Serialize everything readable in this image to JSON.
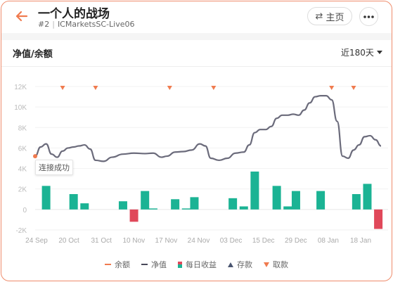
{
  "header": {
    "title": "一个人的战场",
    "rank": "#2",
    "server": "ICMarketsSC-Live06",
    "home_label": "主页"
  },
  "section": {
    "title": "净值/余额",
    "range_label": "近180天"
  },
  "tooltip": {
    "text": "连接成功"
  },
  "legend": {
    "items": [
      "余额",
      "净值",
      "每日收益",
      "存款",
      "取款"
    ]
  },
  "colors": {
    "accent": "#f07b4f",
    "balance": "#f07b4f",
    "equity": "#6b6b7b",
    "profit_pos": "#1bb394",
    "profit_neg": "#e0485a",
    "deposit": "#4a5570",
    "withdraw": "#f07b4f"
  },
  "chart_data": {
    "type": "line",
    "y_ticks": [
      "12K",
      "10K",
      "8K",
      "6K",
      "4K",
      "2K",
      "0",
      "-2K"
    ],
    "ylim": [
      -2000,
      12000
    ],
    "x_ticks": [
      "24 Sep",
      "20 Oct",
      "31 Oct",
      "10 Nov",
      "17 Nov",
      "24 Nov",
      "03 Dec",
      "15 Dec",
      "29 Dec",
      "08 Jan",
      "18 Jan"
    ],
    "equity_series": {
      "name": "净值",
      "points": [
        [
          0,
          5200
        ],
        [
          2,
          6100
        ],
        [
          4,
          6400
        ],
        [
          6,
          5400
        ],
        [
          8,
          5100
        ],
        [
          10,
          5700
        ],
        [
          12,
          6000
        ],
        [
          14,
          6100
        ],
        [
          16,
          6200
        ],
        [
          18,
          6300
        ],
        [
          20,
          5900
        ],
        [
          22,
          4800
        ],
        [
          25,
          4700
        ],
        [
          28,
          5100
        ],
        [
          32,
          5400
        ],
        [
          36,
          5500
        ],
        [
          40,
          5450
        ],
        [
          43,
          5500
        ],
        [
          46,
          5100
        ],
        [
          48,
          5200
        ],
        [
          51,
          5600
        ],
        [
          54,
          5650
        ],
        [
          57,
          5800
        ],
        [
          60,
          6400
        ],
        [
          62,
          6200
        ],
        [
          64,
          5000
        ],
        [
          67,
          4800
        ],
        [
          70,
          5000
        ],
        [
          73,
          5500
        ],
        [
          76,
          5600
        ],
        [
          78,
          6300
        ],
        [
          80,
          7500
        ],
        [
          82,
          7800
        ],
        [
          84,
          7800
        ],
        [
          86,
          8100
        ],
        [
          88,
          8900
        ],
        [
          90,
          9200
        ],
        [
          92,
          9200
        ],
        [
          94,
          9300
        ],
        [
          96,
          9200
        ],
        [
          98,
          9700
        ],
        [
          100,
          10400
        ],
        [
          102,
          11000
        ],
        [
          104,
          11100
        ],
        [
          106,
          11100
        ],
        [
          108,
          10700
        ],
        [
          110,
          8600
        ],
        [
          112,
          5200
        ],
        [
          114,
          5000
        ],
        [
          116,
          5800
        ],
        [
          118,
          6300
        ],
        [
          120,
          7100
        ],
        [
          122,
          7200
        ],
        [
          124,
          6800
        ],
        [
          126,
          6200
        ]
      ]
    },
    "balance_series": {
      "name": "余额",
      "points": [
        [
          0,
          5200
        ]
      ]
    },
    "daily_profit": {
      "name": "每日收益",
      "bars": [
        [
          4,
          2300
        ],
        [
          14,
          1500
        ],
        [
          18,
          600
        ],
        [
          32,
          800
        ],
        [
          36,
          -1200
        ],
        [
          40,
          1800
        ],
        [
          43,
          100
        ],
        [
          51,
          1000
        ],
        [
          55,
          100
        ],
        [
          58,
          1200
        ],
        [
          72,
          1100
        ],
        [
          76,
          300
        ],
        [
          80,
          3700
        ],
        [
          88,
          2300
        ],
        [
          92,
          300
        ],
        [
          95,
          1800
        ],
        [
          104,
          1800
        ],
        [
          117,
          1500
        ],
        [
          121,
          2500
        ],
        [
          125,
          -1900
        ]
      ]
    },
    "withdrawals": {
      "name": "取款",
      "x": [
        10,
        22,
        49,
        65,
        108,
        116
      ]
    },
    "x_max": 126
  }
}
